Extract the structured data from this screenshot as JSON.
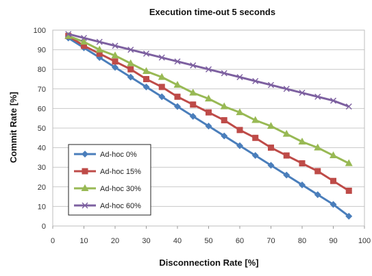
{
  "chart_data": {
    "type": "line",
    "title": "Execution time-out 5 seconds",
    "xlabel": "Disconnection Rate [%]",
    "ylabel": "Commit Rate [%]",
    "xlim": [
      0,
      100
    ],
    "ylim": [
      0,
      100
    ],
    "xticks": [
      0,
      10,
      20,
      30,
      40,
      50,
      60,
      70,
      80,
      90,
      100
    ],
    "yticks": [
      0,
      10,
      20,
      30,
      40,
      50,
      60,
      70,
      80,
      90,
      100
    ],
    "grid": "horizontal",
    "legend": "bottom-left",
    "x": [
      5,
      10,
      15,
      20,
      25,
      30,
      35,
      40,
      45,
      50,
      55,
      60,
      65,
      70,
      75,
      80,
      85,
      90,
      95
    ],
    "series": [
      {
        "name": "Ad-hoc 0%",
        "color": "#4a7ebb",
        "marker": "diamond",
        "values": [
          96,
          91,
          86,
          81,
          76,
          71,
          66,
          61,
          56,
          51,
          46,
          41,
          36,
          31,
          26,
          21,
          16,
          11,
          5
        ]
      },
      {
        "name": "Ad-hoc 15%",
        "color": "#be4b48",
        "marker": "square",
        "values": [
          97,
          92,
          88,
          84,
          80,
          75,
          71,
          66,
          62,
          58,
          54,
          49,
          45,
          40,
          36,
          32,
          28,
          23,
          18
        ]
      },
      {
        "name": "Ad-hoc 30%",
        "color": "#98b954",
        "marker": "triangle",
        "values": [
          97,
          94,
          90,
          87,
          83,
          79,
          76,
          72,
          68,
          65,
          61,
          58,
          54,
          51,
          47,
          43,
          40,
          36,
          32
        ]
      },
      {
        "name": "Ad-hoc 60%",
        "color": "#7d60a0",
        "marker": "cross",
        "values": [
          98,
          96,
          94,
          92,
          90,
          88,
          86,
          84,
          82,
          80,
          78,
          76,
          74,
          72,
          70,
          68,
          66,
          64,
          61
        ]
      }
    ]
  }
}
